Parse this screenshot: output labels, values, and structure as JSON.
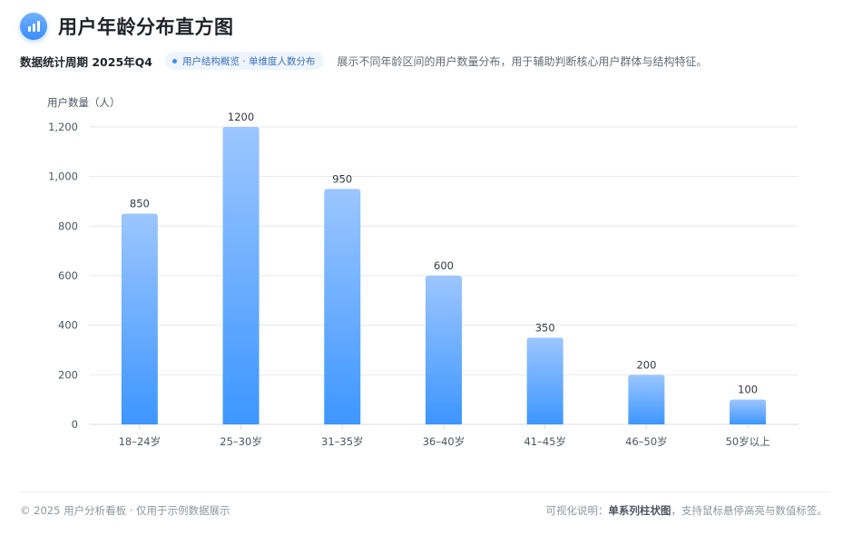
{
  "header": {
    "title": "用户年龄分布直方图",
    "logo_icon": "bar-chart-icon"
  },
  "subheader": {
    "period": "数据统计周期 2025年Q4",
    "tag": "用户结构概览 · 单维度人数分布",
    "description": "展示不同年龄区间的用户数量分布，用于辅助判断核心用户群体与结构特征。"
  },
  "chart_data": {
    "type": "bar",
    "ylabel": "用户数量（人）",
    "xlabel": "",
    "categories": [
      "18–24岁",
      "25–30岁",
      "31–35岁",
      "36–40岁",
      "41–45岁",
      "46–50岁",
      "50岁以上"
    ],
    "values": [
      850,
      1200,
      950,
      600,
      350,
      200,
      100
    ],
    "value_labels": [
      "850",
      "1200",
      "950",
      "600",
      "350",
      "200",
      "100"
    ],
    "ylim": [
      0,
      1200
    ],
    "yticks": [
      0,
      200,
      400,
      600,
      800,
      1000,
      1200
    ],
    "ytick_labels": [
      "0",
      "200",
      "400",
      "600",
      "800",
      "1,000",
      "1,200"
    ],
    "grid": true,
    "legend": "none",
    "colors": {
      "bar_top": "#9cc6ff",
      "bar_bottom": "#3d96ff",
      "grid": "#e8eaed",
      "axis": "#d9dce1"
    }
  },
  "footer": {
    "left": "© 2025 用户分析看板 · 仅用于示例数据展示",
    "right_prefix": "可视化说明：",
    "right_bold": "单系列柱状图",
    "right_suffix": "，支持鼠标悬停高亮与数值标签。"
  }
}
